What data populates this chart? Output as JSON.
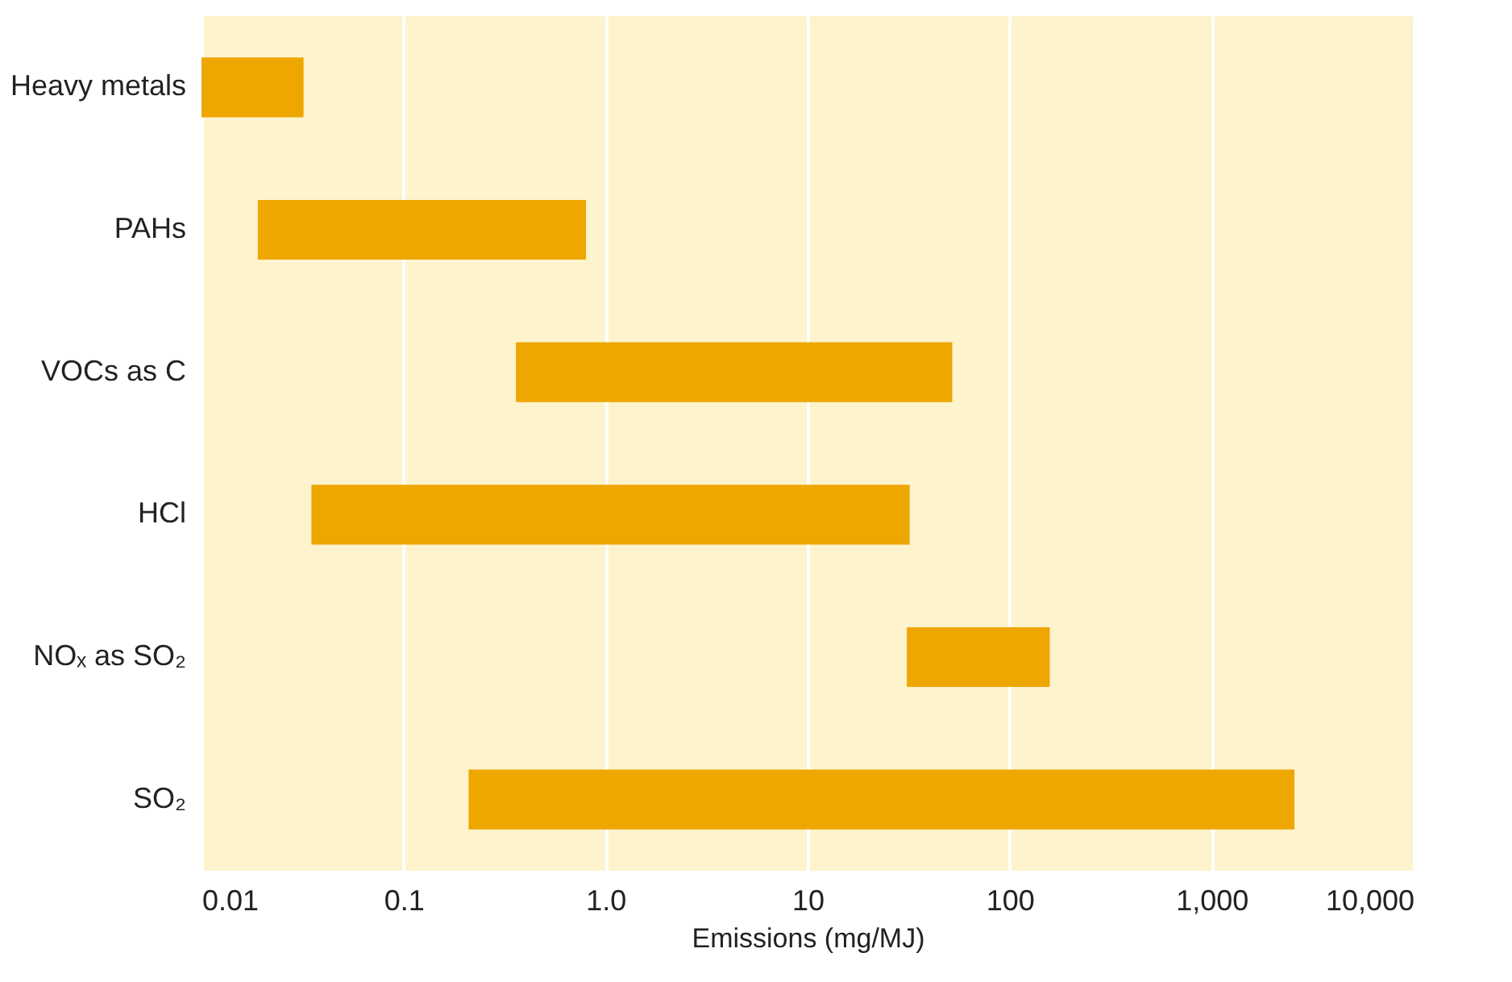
{
  "chart_data": {
    "type": "bar",
    "orientation": "horizontal",
    "xlabel": "Emissions (mg/MJ)",
    "categories": [
      "Heavy metals",
      "PAHs",
      "VOCs as C",
      "HCl",
      "NOₓ as SO₂",
      "SO₂"
    ],
    "base": [
      0.01,
      0.019,
      0.36,
      0.035,
      31,
      0.21
    ],
    "values": [
      0.022,
      0.781,
      51.64,
      31.965,
      127,
      2569.79
    ],
    "color": "#eea600",
    "log": "x",
    "xlim": [
      0.01,
      10000
    ],
    "xticks": [
      0.01,
      0.1,
      {
        "value": 1,
        "label": "1.0"
      },
      10,
      100,
      {
        "value": 1000,
        "label": "1,000"
      },
      {
        "value": 10000,
        "label": "10,000"
      }
    ],
    "grid": "x"
  }
}
